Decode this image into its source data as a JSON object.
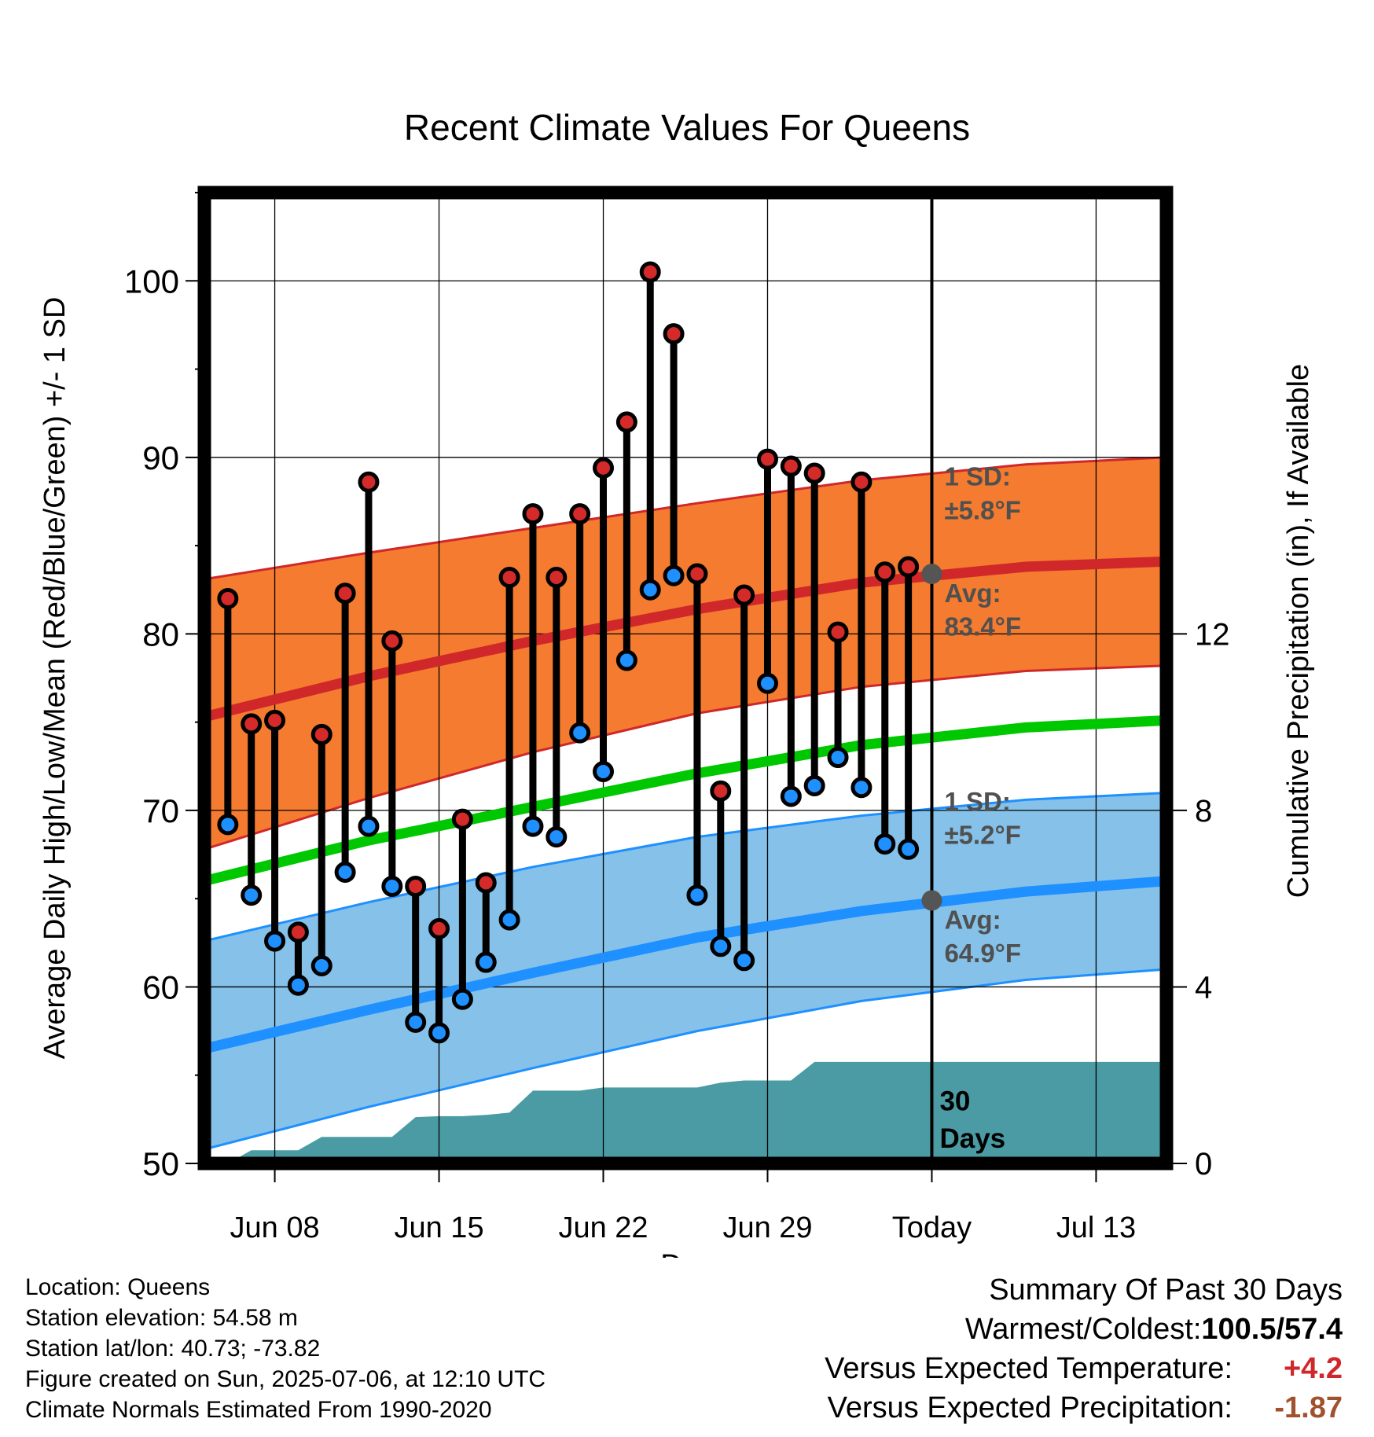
{
  "chart_data": {
    "type": "line",
    "title": "Recent Climate Values For Queens",
    "xlabel": "Day",
    "ylabel": "Average Daily High/Low/Mean (Red/Blue/Green) +/- 1 SD",
    "y2label": "Cumulative Precipitation (in), If Available",
    "ylim": [
      50,
      105
    ],
    "y2lim": [
      0,
      22
    ],
    "y_ticks": [
      50,
      60,
      70,
      80,
      90,
      100
    ],
    "y2_ticks": [
      0,
      4,
      8,
      12
    ],
    "x_tick_labels": [
      "Jun 08",
      "Jun 15",
      "Jun 22",
      "Jun 29",
      "Today",
      "Jul 13"
    ],
    "x_tick_dates": [
      "2025-06-08",
      "2025-06-15",
      "2025-06-22",
      "2025-06-29",
      "2025-07-06",
      "2025-07-13"
    ],
    "xlim": [
      "2025-06-05",
      "2025-07-16"
    ],
    "today": "2025-07-06",
    "dates": [
      "2025-06-06",
      "2025-06-07",
      "2025-06-08",
      "2025-06-09",
      "2025-06-10",
      "2025-06-11",
      "2025-06-12",
      "2025-06-13",
      "2025-06-14",
      "2025-06-15",
      "2025-06-16",
      "2025-06-17",
      "2025-06-18",
      "2025-06-19",
      "2025-06-20",
      "2025-06-21",
      "2025-06-22",
      "2025-06-23",
      "2025-06-24",
      "2025-06-25",
      "2025-06-26",
      "2025-06-27",
      "2025-06-28",
      "2025-06-29",
      "2025-06-30",
      "2025-07-01",
      "2025-07-02",
      "2025-07-03",
      "2025-07-04",
      "2025-07-05"
    ],
    "highs": [
      82.0,
      74.9,
      75.1,
      63.1,
      74.3,
      82.3,
      88.6,
      79.6,
      65.7,
      63.3,
      69.5,
      65.9,
      83.2,
      86.8,
      83.2,
      86.8,
      89.4,
      92.0,
      100.5,
      97.0,
      83.4,
      71.1,
      82.2,
      89.9,
      89.5,
      89.1,
      80.1,
      88.6,
      83.5,
      83.8
    ],
    "lows": [
      69.2,
      65.2,
      62.6,
      60.1,
      61.2,
      66.5,
      69.1,
      65.7,
      58.0,
      57.4,
      59.3,
      61.4,
      63.8,
      69.1,
      68.5,
      74.4,
      72.2,
      78.5,
      82.5,
      83.3,
      65.2,
      62.3,
      61.5,
      77.2,
      70.8,
      71.4,
      73.0,
      71.3,
      68.1,
      67.8
    ],
    "normals": {
      "dates": [
        "2025-06-05",
        "2025-06-12",
        "2025-06-19",
        "2025-06-26",
        "2025-07-03",
        "2025-07-10",
        "2025-07-16"
      ],
      "high_avg": [
        75.3,
        77.6,
        79.6,
        81.4,
        82.9,
        83.8,
        84.1
      ],
      "high_upper": [
        83.1,
        84.6,
        86.0,
        87.4,
        88.7,
        89.6,
        90.0
      ],
      "high_lower": [
        67.8,
        70.7,
        73.3,
        75.5,
        77.0,
        77.9,
        78.2
      ],
      "mean_avg": [
        66.0,
        68.3,
        70.2,
        72.1,
        73.7,
        74.7,
        75.1
      ],
      "low_avg": [
        56.5,
        58.7,
        60.8,
        62.8,
        64.3,
        65.4,
        66.0
      ],
      "low_upper": [
        62.6,
        64.8,
        66.8,
        68.5,
        69.7,
        70.6,
        71.0
      ],
      "low_lower": [
        50.8,
        53.2,
        55.4,
        57.5,
        59.2,
        60.4,
        61.0
      ]
    },
    "precip": {
      "dates": [
        "2025-06-05",
        "2025-06-06",
        "2025-06-07",
        "2025-06-08",
        "2025-06-09",
        "2025-06-10",
        "2025-06-11",
        "2025-06-12",
        "2025-06-13",
        "2025-06-14",
        "2025-06-15",
        "2025-06-16",
        "2025-06-17",
        "2025-06-18",
        "2025-06-19",
        "2025-06-20",
        "2025-06-21",
        "2025-06-22",
        "2025-06-23",
        "2025-06-24",
        "2025-06-25",
        "2025-06-26",
        "2025-06-27",
        "2025-06-28",
        "2025-06-29",
        "2025-06-30",
        "2025-07-01",
        "2025-07-02",
        "2025-07-16"
      ],
      "cumulative": [
        0,
        0,
        0.3,
        0.3,
        0.3,
        0.6,
        0.6,
        0.6,
        0.6,
        1.05,
        1.07,
        1.07,
        1.1,
        1.15,
        1.65,
        1.65,
        1.65,
        1.72,
        1.72,
        1.72,
        1.72,
        1.72,
        1.83,
        1.88,
        1.88,
        1.88,
        2.3,
        2.3,
        2.3
      ]
    },
    "annotations": {
      "high_sd_label": "1 SD:",
      "high_sd_value": "±5.8°F",
      "high_avg_label": "Avg:",
      "high_avg_value": "83.4°F",
      "high_avg_today": 83.4,
      "low_sd_label": "1 SD:",
      "low_sd_value": "±5.2°F",
      "low_avg_label": "Avg:",
      "low_avg_value": "64.9°F",
      "low_avg_today": 64.9,
      "period_label_1": "30",
      "period_label_2": "Days"
    },
    "colors": {
      "high_band": "#f47b2f",
      "high_line": "#d0282a",
      "mean_line": "#00c800",
      "low_band": "#85c1e8",
      "low_line": "#1e90ff",
      "precip": "#4a9ba3",
      "high_marker": "#d42a2a",
      "low_marker": "#1e90ff",
      "annotation": "#505050"
    }
  },
  "footer": {
    "location": "Location: Queens",
    "elevation": "Station elevation: 54.58 m",
    "latlon": "Station lat/lon: 40.73; -73.82",
    "created": "Figure created on Sun, 2025-07-06, at 12:10 UTC",
    "normals": "Climate Normals Estimated From 1990-2020"
  },
  "summary": {
    "heading": "Summary Of Past 30 Days",
    "warm_cold_label": "Warmest/Coldest:",
    "warm_cold_value": "100.5/57.4",
    "temp_label": "Versus Expected Temperature:",
    "temp_value": "+4.2",
    "precip_label": "Versus Expected Precipitation:",
    "precip_value": "-1.87"
  }
}
